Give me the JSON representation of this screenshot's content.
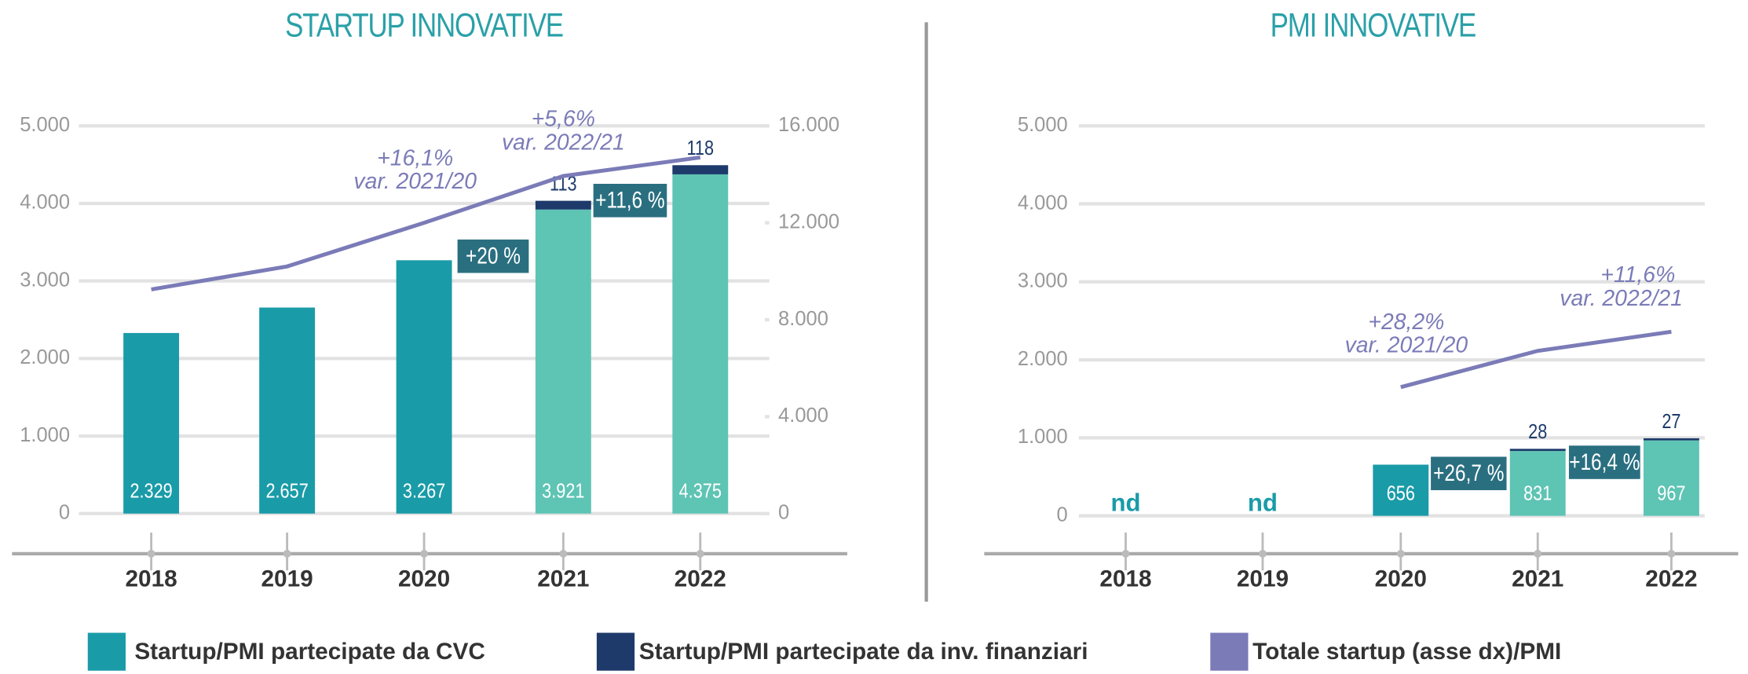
{
  "chart_data": [
    {
      "type": "bar",
      "title": "STARTUP INNOVATIVE",
      "categories": [
        "2018",
        "2019",
        "2020",
        "2021",
        "2022"
      ],
      "series": [
        {
          "name": "Startup/PMI partecipate da CVC",
          "color": "#1a9ba8",
          "point_colors": [
            "#1a9ba8",
            "#1a9ba8",
            "#1a9ba8",
            "#5ec4b4",
            "#5ec4b4"
          ],
          "values": [
            2329,
            2657,
            3267,
            3921,
            4375
          ],
          "value_labels": [
            "2.329",
            "2.657",
            "3.267",
            "3.921",
            "4.375"
          ]
        },
        {
          "name": "Startup/PMI partecipate da inv. finanziari",
          "color": "#1d3a6b",
          "values": [
            null,
            null,
            null,
            113,
            118
          ]
        },
        {
          "name": "Totale startup (asse dx)/PMI",
          "color": "#7b7bb8",
          "type": "line",
          "axis": "y2",
          "values": [
            9250,
            10200,
            12000,
            13930,
            14700
          ]
        }
      ],
      "ylim": [
        0,
        5000
      ],
      "yticks": [
        0,
        {
          "value": 1000,
          "label": "1.000"
        },
        {
          "value": 2000,
          "label": "2.000"
        },
        {
          "value": 3000,
          "label": "3.000"
        },
        {
          "value": 4000,
          "label": "4.000"
        },
        {
          "value": 5000,
          "label": "5.000"
        }
      ],
      "y2lim": [
        0,
        16000
      ],
      "y2ticks": [
        0,
        {
          "value": 4000,
          "label": "4.000"
        },
        {
          "value": 8000,
          "label": "8.000"
        },
        {
          "value": 12000,
          "label": "12.000"
        },
        {
          "value": 16000,
          "label": "16.000"
        }
      ],
      "grid": true,
      "annotations": [
        "+16,1%",
        "var. 2021/20",
        "+5,6%",
        "var. 2022/21"
      ],
      "change_labels": [
        "+20 %",
        "+11,6 %"
      ]
    },
    {
      "type": "bar",
      "title": "PMI INNOVATIVE",
      "categories": [
        "2018",
        "2019",
        "2020",
        "2021",
        "2022"
      ],
      "series": [
        {
          "color": "#1a9ba8",
          "point_colors": [
            "#1a9ba8",
            "#1a9ba8",
            "#1a9ba8",
            "#5ec4b4",
            "#5ec4b4"
          ],
          "values": [
            null,
            null,
            656,
            831,
            967
          ],
          "value_labels": [
            "nd",
            "nd",
            "656",
            "831",
            "967"
          ]
        },
        {
          "color": "#1d3a6b",
          "values": [
            null,
            null,
            null,
            28,
            27
          ]
        },
        {
          "color": "#7b7bb8",
          "type": "line",
          "axis": "y",
          "values": [
            null,
            null,
            1650,
            2115,
            2360
          ]
        }
      ],
      "ylim": [
        0,
        5000
      ],
      "yticks": [
        0,
        {
          "value": 1000,
          "label": "1.000"
        },
        {
          "value": 2000,
          "label": "2.000"
        },
        {
          "value": 3000,
          "label": "3.000"
        },
        {
          "value": 4000,
          "label": "4.000"
        },
        {
          "value": 5000,
          "label": "5.000"
        }
      ],
      "grid": true,
      "annotations": [
        "+28,2%",
        "var. 2021/20",
        "+11,6%",
        "var. 2022/21"
      ],
      "change_labels": [
        "+26,7 %",
        "+16,4 %"
      ]
    }
  ]
}
